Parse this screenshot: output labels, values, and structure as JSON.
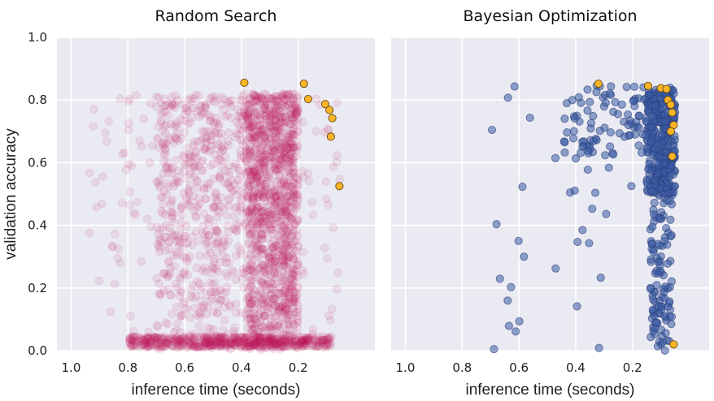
{
  "chart_data": [
    {
      "type": "scatter",
      "title": "Random Search",
      "xlabel": "inference time (seconds)",
      "ylabel": "validation accuracy",
      "xlim": [
        1.05,
        -0.07
      ],
      "ylim": [
        0.0,
        1.0
      ],
      "x_ticks": [
        "1.0",
        "0.8",
        "0.6",
        "0.4",
        "0.2"
      ],
      "y_ticks": [
        "0.0",
        "0.2",
        "0.4",
        "0.6",
        "0.8",
        "1.0"
      ],
      "grid": true,
      "point_color": "#c2185b",
      "pareto_color": "#f9b526",
      "n_points": 2600,
      "pareto_points": [
        [
          0.39,
          0.855
        ],
        [
          0.18,
          0.852
        ],
        [
          0.165,
          0.803
        ],
        [
          0.105,
          0.787
        ],
        [
          0.09,
          0.768
        ],
        [
          0.08,
          0.742
        ],
        [
          0.085,
          0.683
        ],
        [
          0.055,
          0.525
        ]
      ]
    },
    {
      "type": "scatter",
      "title": "Bayesian Optimization",
      "xlabel": "inference time (seconds)",
      "ylabel": "",
      "xlim": [
        1.05,
        -0.07
      ],
      "ylim": [
        0.0,
        1.0
      ],
      "x_ticks": [
        "1.0",
        "0.8",
        "0.6",
        "0.4",
        "0.2"
      ],
      "y_ticks": [],
      "grid": true,
      "point_color": "#3b5ba5",
      "pareto_color": "#f9b526",
      "n_points": 560,
      "pareto_points": [
        [
          0.32,
          0.852
        ],
        [
          0.145,
          0.845
        ],
        [
          0.1,
          0.838
        ],
        [
          0.08,
          0.835
        ],
        [
          0.075,
          0.8
        ],
        [
          0.065,
          0.785
        ],
        [
          0.06,
          0.76
        ],
        [
          0.055,
          0.72
        ],
        [
          0.065,
          0.7
        ],
        [
          0.06,
          0.62
        ],
        [
          0.055,
          0.02
        ]
      ]
    }
  ]
}
